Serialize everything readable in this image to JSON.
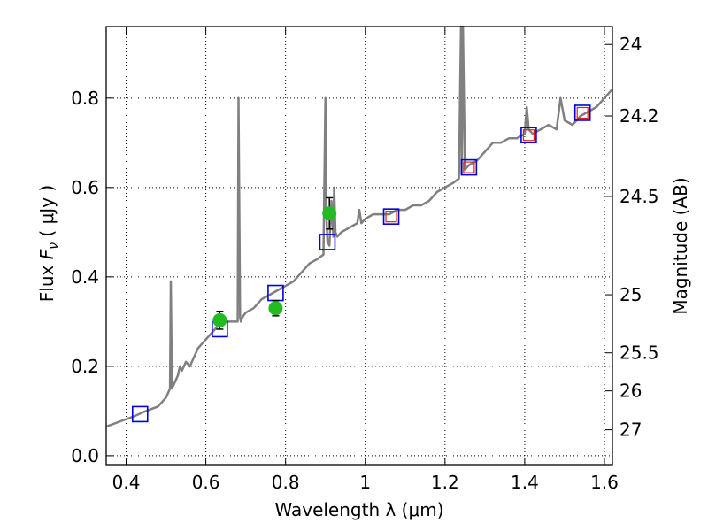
{
  "chart_data": {
    "type": "scatter",
    "xlabel": "Wavelength  λ (μm)",
    "ylabel_parts": [
      "Flux ",
      "F",
      "ν",
      " ( μJy )"
    ],
    "y2label": "Magnitude (AB)",
    "xlim": [
      0.35,
      1.62
    ],
    "ylim": [
      -0.02,
      0.96
    ],
    "grid": true,
    "x_ticks": [
      {
        "value": 0.4,
        "label": "0.4"
      },
      {
        "value": 0.6,
        "label": "0.6"
      },
      {
        "value": 0.8,
        "label": "0.8"
      },
      {
        "value": 1.0,
        "label": "1"
      },
      {
        "value": 1.2,
        "label": "1.2"
      },
      {
        "value": 1.4,
        "label": "1.4"
      },
      {
        "value": 1.6,
        "label": "1.6"
      }
    ],
    "y_ticks": [
      {
        "value": 0.0,
        "label": "0.0"
      },
      {
        "value": 0.2,
        "label": "0.2"
      },
      {
        "value": 0.4,
        "label": "0.4"
      },
      {
        "value": 0.6,
        "label": "0.6"
      },
      {
        "value": 0.8,
        "label": "0.8"
      }
    ],
    "y2_ticks": [
      {
        "label": "24",
        "flux": 0.92
      },
      {
        "label": "24.2",
        "flux": 0.76
      },
      {
        "label": "24.5",
        "flux": 0.58
      },
      {
        "label": "25",
        "flux": 0.36
      },
      {
        "label": "25.5",
        "flux": 0.23
      },
      {
        "label": "26",
        "flux": 0.145
      },
      {
        "label": "27",
        "flux": 0.058
      }
    ],
    "series": [
      {
        "kind": "spectrum-line",
        "color": "#808080",
        "x": [
          0.35,
          0.38,
          0.42,
          0.45,
          0.48,
          0.5,
          0.51,
          0.512,
          0.515,
          0.52,
          0.53,
          0.535,
          0.54,
          0.55,
          0.56,
          0.57,
          0.58,
          0.6,
          0.62,
          0.64,
          0.66,
          0.68,
          0.682,
          0.686,
          0.688,
          0.692,
          0.7,
          0.72,
          0.74,
          0.76,
          0.78,
          0.8,
          0.82,
          0.84,
          0.86,
          0.88,
          0.895,
          0.9,
          0.902,
          0.905,
          0.91,
          0.915,
          0.92,
          0.922,
          0.925,
          0.93,
          0.94,
          0.96,
          0.98,
          0.985,
          0.99,
          1.0,
          1.02,
          1.04,
          1.06,
          1.08,
          1.1,
          1.12,
          1.14,
          1.16,
          1.18,
          1.2,
          1.22,
          1.235,
          1.24,
          1.242,
          1.245,
          1.25,
          1.26,
          1.28,
          1.3,
          1.32,
          1.34,
          1.36,
          1.38,
          1.4,
          1.405,
          1.41,
          1.42,
          1.44,
          1.46,
          1.48,
          1.49,
          1.5,
          1.52,
          1.54,
          1.56,
          1.58,
          1.6,
          1.62
        ],
        "y": [
          0.065,
          0.075,
          0.088,
          0.1,
          0.11,
          0.13,
          0.15,
          0.39,
          0.15,
          0.16,
          0.18,
          0.2,
          0.19,
          0.21,
          0.2,
          0.22,
          0.24,
          0.26,
          0.28,
          0.3,
          0.3,
          0.3,
          0.8,
          0.31,
          0.3,
          0.31,
          0.32,
          0.33,
          0.35,
          0.36,
          0.37,
          0.38,
          0.39,
          0.41,
          0.43,
          0.44,
          0.45,
          0.8,
          0.55,
          0.48,
          0.47,
          0.57,
          0.49,
          0.6,
          0.5,
          0.49,
          0.5,
          0.51,
          0.52,
          0.55,
          0.52,
          0.53,
          0.54,
          0.54,
          0.54,
          0.55,
          0.55,
          0.56,
          0.56,
          0.57,
          0.59,
          0.6,
          0.61,
          0.62,
          0.96,
          0.63,
          0.96,
          0.64,
          0.65,
          0.66,
          0.68,
          0.7,
          0.7,
          0.71,
          0.71,
          0.72,
          0.78,
          0.73,
          0.72,
          0.73,
          0.74,
          0.73,
          0.8,
          0.75,
          0.74,
          0.76,
          0.77,
          0.78,
          0.8,
          0.82
        ]
      },
      {
        "kind": "photometry-green",
        "color": "#22bb22",
        "x": [
          0.635,
          0.775,
          0.91
        ],
        "y": [
          0.303,
          0.33,
          0.542
        ],
        "yerr": [
          0.02,
          0.017,
          0.035
        ]
      },
      {
        "kind": "model-blue-squares",
        "color": "#0000dd",
        "x": [
          0.435,
          0.635,
          0.775,
          0.905,
          1.065,
          1.26,
          1.41,
          1.545
        ],
        "y": [
          0.093,
          0.283,
          0.364,
          0.478,
          0.535,
          0.645,
          0.717,
          0.767
        ]
      },
      {
        "kind": "model-red-squares",
        "color": "#dd2222",
        "x": [
          1.065,
          1.26,
          1.41,
          1.545
        ],
        "y": [
          0.535,
          0.645,
          0.717,
          0.767
        ]
      }
    ]
  }
}
